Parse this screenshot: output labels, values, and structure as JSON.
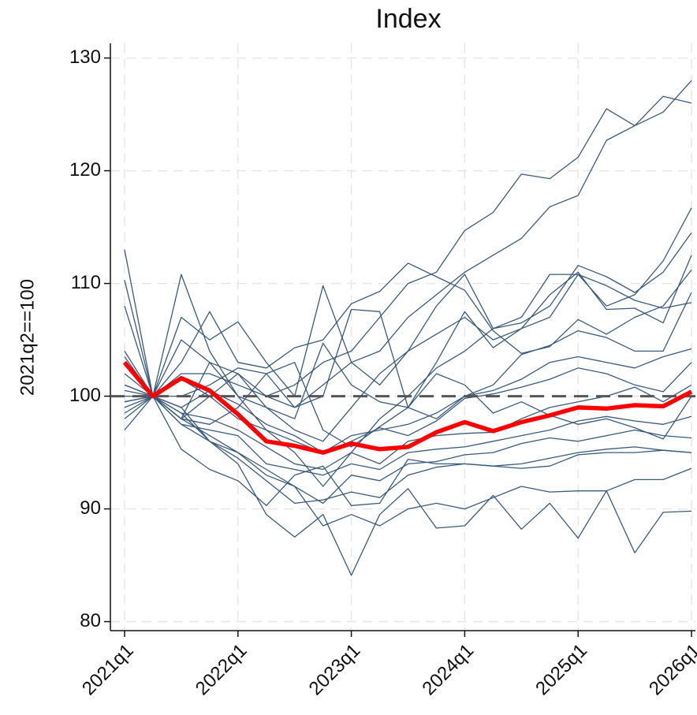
{
  "chart_data": {
    "type": "line",
    "title": "Index",
    "y_label": "2021q2==100",
    "categories": [
      "2021q1",
      null,
      null,
      null,
      "2022q1",
      null,
      null,
      null,
      "2023q1",
      null,
      null,
      null,
      "2024q1",
      null,
      null,
      null,
      "2025q1",
      null,
      null,
      null,
      "2026q1"
    ],
    "ylim": [
      79.2,
      131.3
    ],
    "yticks": [
      80,
      90,
      100,
      110,
      120,
      130
    ],
    "grid": true,
    "refline": 100,
    "series": [
      {
        "color": "#3a5a7a",
        "values": [
          103,
          100,
          98,
          100,
          102,
          100,
          101,
          103,
          104,
          107,
          110,
          111,
          114.7,
          116.3,
          119.7,
          119.3,
          121.2,
          125.5,
          124,
          125.2,
          128
        ]
      },
      {
        "color": "#3a5a7a",
        "values": [
          101,
          100,
          102,
          102,
          101,
          100,
          99,
          101,
          103,
          104,
          107,
          109,
          111,
          112.5,
          114,
          116.8,
          117.8,
          122.7,
          124,
          126.6,
          126
        ]
      },
      {
        "color": "#3a5a7a",
        "values": [
          113,
          100,
          98,
          103,
          102,
          99,
          97,
          96,
          99,
          102,
          104,
          108,
          110.8,
          106,
          107,
          110.8,
          110.8,
          108,
          109,
          112,
          116.7
        ]
      },
      {
        "color": "#3a5a7a",
        "values": [
          110.3,
          100,
          110.8,
          104,
          100,
          97,
          95,
          92,
          95,
          98,
          100,
          102.5,
          104,
          106,
          106.5,
          108,
          111.6,
          110.6,
          109.2,
          111,
          114.5
        ]
      },
      {
        "color": "#3a5a7a",
        "values": [
          108,
          100,
          107,
          105,
          106.6,
          103,
          100,
          109.8,
          103,
          101,
          104,
          105.5,
          107,
          105,
          106,
          109,
          111,
          107.7,
          107.8,
          106.5,
          112.5
        ]
      },
      {
        "color": "#3a5a7a",
        "values": [
          104,
          100,
          103,
          107.5,
          103,
          102.5,
          104.3,
          105,
          108.2,
          109.3,
          111.8,
          110.6,
          109.4,
          105.8,
          103.8,
          104.4,
          106.8,
          105.5,
          107,
          108,
          111.2
        ]
      },
      {
        "color": "#3a5a7a",
        "values": [
          103.5,
          100,
          100,
          101,
          102.5,
          102,
          99,
          100,
          107.7,
          107.5,
          99,
          103,
          107.5,
          104.3,
          106,
          107,
          110.8,
          109.8,
          108.5,
          107.8,
          108.3
        ]
      },
      {
        "color": "#3a5a7a",
        "values": [
          102,
          100,
          105,
          103,
          100,
          99,
          98,
          104.7,
          101,
          99.5,
          99,
          98,
          100,
          101,
          103.7,
          104.5,
          105.8,
          105.2,
          104,
          104,
          109.2
        ]
      },
      {
        "color": "#3a5a7a",
        "values": [
          101,
          100,
          101.5,
          100,
          98,
          97,
          96,
          95,
          96.5,
          97,
          97.5,
          98.5,
          100,
          100.5,
          101.5,
          103,
          103.5,
          103,
          102.5,
          103.5,
          104.2
        ]
      },
      {
        "color": "#3a5a7a",
        "values": [
          100.5,
          100,
          99,
          100.5,
          99.3,
          97.5,
          96.5,
          95,
          96,
          97.2,
          96.5,
          97.8,
          99.8,
          100.2,
          100.8,
          101.5,
          102.5,
          102,
          101,
          100.4,
          103
        ]
      },
      {
        "color": "#3a5a7a",
        "values": [
          99.5,
          100,
          98.5,
          98,
          97,
          95.5,
          94,
          93.5,
          95,
          94,
          96,
          96.5,
          96.7,
          96.8,
          98,
          99,
          99.5,
          100,
          100.8,
          99.5,
          101
        ]
      },
      {
        "color": "#3a5a7a",
        "values": [
          99,
          100,
          97.5,
          97,
          96.5,
          94,
          93.5,
          93,
          94,
          93.5,
          95,
          95.3,
          95.5,
          96,
          96.5,
          97,
          97.8,
          98.2,
          97.8,
          97.5,
          98.2
        ]
      },
      {
        "color": "#3a5a7a",
        "values": [
          98.5,
          100,
          98,
          96.5,
          95,
          93.5,
          92,
          90.5,
          93,
          92.5,
          94,
          94.2,
          94.8,
          95,
          95.8,
          96.3,
          96,
          96.5,
          97,
          96.5,
          96.3
        ]
      },
      {
        "color": "#3a5a7a",
        "values": [
          98,
          100,
          97.5,
          96,
          94.5,
          92.5,
          90.5,
          90.8,
          91.5,
          91,
          93,
          93.7,
          94,
          93.8,
          94,
          94.5,
          95,
          95.3,
          95.5,
          95.2,
          95
        ]
      },
      {
        "color": "#3a5a7a",
        "values": [
          97,
          100,
          95.3,
          93.5,
          92.5,
          90.3,
          93,
          93.8,
          90.3,
          90.5,
          94.4,
          94,
          94,
          93.8,
          93.6,
          93.8,
          94.8,
          95,
          95,
          95.2,
          95
        ]
      },
      {
        "color": "#3a5a7a",
        "values": [
          101,
          100,
          99,
          96,
          95,
          93,
          92,
          88.5,
          89.5,
          88.5,
          90,
          90.5,
          90,
          91,
          92,
          91.5,
          91.6,
          91.6,
          92.6,
          92.6,
          93.6
        ]
      },
      {
        "color": "#3a5a7a",
        "values": [
          100,
          100,
          98.5,
          96,
          94,
          89.5,
          87.5,
          89.5,
          84.1,
          89.5,
          91.8,
          88.3,
          88.5,
          91.2,
          88.2,
          90.5,
          87.4,
          91.6,
          86.1,
          89.7,
          89.8
        ]
      },
      {
        "color": "#3a5a7a",
        "values": [
          99.5,
          100,
          98,
          97.5,
          99,
          102,
          103,
          97,
          95.5,
          97.3,
          99,
          102,
          101,
          98.5,
          99.5,
          98.3,
          97.5,
          98,
          97.2,
          96.2,
          100
        ]
      },
      {
        "color": "#ff0000",
        "values": [
          103,
          100,
          101.6,
          100.5,
          98.4,
          96,
          95.6,
          95,
          95.8,
          95.3,
          95.5,
          96.8,
          97.7,
          96.9,
          97.7,
          98.3,
          99,
          98.9,
          99.2,
          99.1,
          100.4
        ]
      }
    ]
  }
}
